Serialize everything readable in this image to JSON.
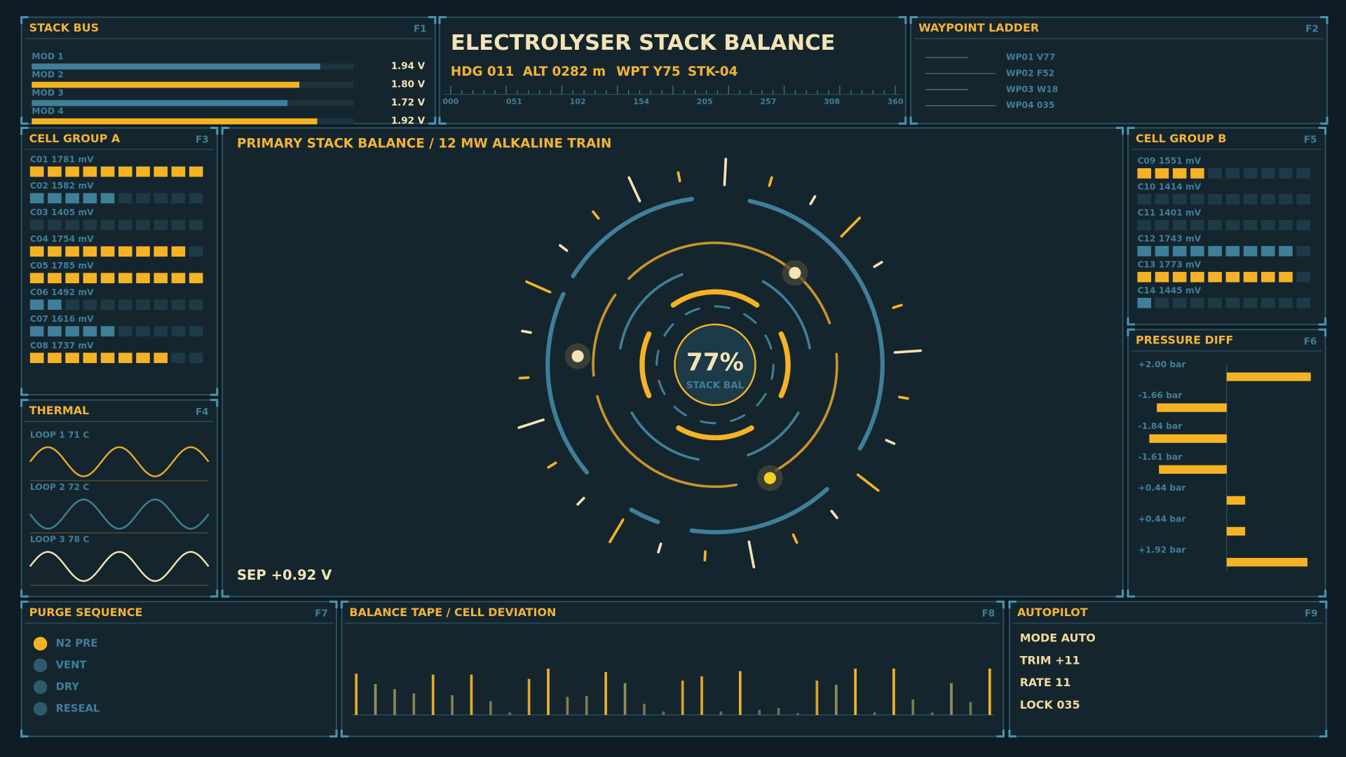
{
  "stack_bus": {
    "title": "STACK BUS",
    "key": "F1",
    "rows": [
      {
        "name": "MOD 1",
        "value": 1.94,
        "label": "1.94 V",
        "color": "#3f7f99"
      },
      {
        "name": "MOD 2",
        "value": 1.8,
        "label": "1.80 V",
        "color": "#f5b324"
      },
      {
        "name": "MOD 3",
        "value": 1.72,
        "label": "1.72 V",
        "color": "#3f7f99"
      },
      {
        "name": "MOD 4",
        "value": 1.92,
        "label": "1.92 V",
        "color": "#f5b324"
      }
    ]
  },
  "header": {
    "title": "ELECTROLYSER STACK BALANCE",
    "readouts": [
      "HDG 011",
      "ALT 0282 m",
      "WPT Y75",
      "STK-04"
    ],
    "scale_labels": [
      "000",
      "051",
      "102",
      "154",
      "205",
      "257",
      "308",
      "360"
    ]
  },
  "waypoint_ladder": {
    "title": "WAYPOINT LADDER",
    "key": "F2",
    "items": [
      "WP01 V77",
      "WP02 F52",
      "WP03 W18",
      "WP04 035"
    ]
  },
  "cell_group_a": {
    "title": "CELL GROUP A",
    "key": "F3",
    "cells": [
      {
        "label": "C01 1781 mV",
        "value": 1781,
        "segments": 10,
        "color": "#f5b324"
      },
      {
        "label": "C02 1582 mV",
        "value": 1582,
        "segments": 5,
        "color": "#3f7f99"
      },
      {
        "label": "C03 1405 mV",
        "value": 1405,
        "segments": 0,
        "color": "#3f7f99"
      },
      {
        "label": "C04 1754 mV",
        "value": 1754,
        "segments": 9,
        "color": "#f5b324"
      },
      {
        "label": "C05 1785 mV",
        "value": 1785,
        "segments": 10,
        "color": "#f5b324"
      },
      {
        "label": "C06 1492 mV",
        "value": 1492,
        "segments": 2,
        "color": "#3f7f99"
      },
      {
        "label": "C07 1616 mV",
        "value": 1616,
        "segments": 5,
        "color": "#3f7f99"
      },
      {
        "label": "C08 1737 mV",
        "value": 1737,
        "segments": 8,
        "color": "#f5b324"
      }
    ]
  },
  "thermal": {
    "title": "THERMAL",
    "key": "F4",
    "loops": [
      {
        "label": "LOOP 1 71 C",
        "color": "#e8aa2a"
      },
      {
        "label": "LOOP 2 72 C",
        "color": "#3f7f99"
      },
      {
        "label": "LOOP 3 78 C",
        "color": "#f3e3b5"
      }
    ]
  },
  "center": {
    "title": "PRIMARY STACK BALANCE / 12 MW ALKALINE TRAIN",
    "gauge_value": "77%",
    "gauge_label": "STACK BAL",
    "footer": "SEP +0.92 V"
  },
  "cell_group_b": {
    "title": "CELL GROUP B",
    "key": "F5",
    "cells": [
      {
        "label": "C09 1551 mV",
        "value": 1551,
        "segments": 4,
        "color": "#f5b324"
      },
      {
        "label": "C10 1414 mV",
        "value": 1414,
        "segments": 0,
        "color": "#3f7f99"
      },
      {
        "label": "C11 1401 mV",
        "value": 1401,
        "segments": 0,
        "color": "#3f7f99"
      },
      {
        "label": "C12 1743 mV",
        "value": 1743,
        "segments": 9,
        "color": "#3f7f99"
      },
      {
        "label": "C13 1773 mV",
        "value": 1773,
        "segments": 9,
        "color": "#f5b324"
      },
      {
        "label": "C14 1445 mV",
        "value": 1445,
        "segments": 1,
        "color": "#3f7f99"
      }
    ]
  },
  "pressure_diff": {
    "title": "PRESSURE DIFF",
    "key": "F6",
    "rows": [
      {
        "label": "+2.00 bar",
        "value": 2.0
      },
      {
        "label": "-1.66 bar",
        "value": -1.66
      },
      {
        "label": "-1.84 bar",
        "value": -1.84
      },
      {
        "label": "-1.61 bar",
        "value": -1.61
      },
      {
        "label": "+0.44 bar",
        "value": 0.44
      },
      {
        "label": "+0.44 bar",
        "value": 0.44
      },
      {
        "label": "+1.92 bar",
        "value": 1.92
      }
    ]
  },
  "purge_sequence": {
    "title": "PURGE SEQUENCE",
    "key": "F7",
    "steps": [
      {
        "label": "N2 PRE",
        "color": "#f5b324"
      },
      {
        "label": "VENT",
        "color": "#2e5a6c"
      },
      {
        "label": "DRY",
        "color": "#2e5a6c"
      },
      {
        "label": "RESEAL",
        "color": "#2e5a6c"
      }
    ]
  },
  "balance_tape": {
    "title": "BALANCE TAPE / CELL DEVIATION",
    "key": "F8",
    "values": [
      48,
      36,
      30,
      25,
      47,
      23,
      47,
      16,
      3,
      42,
      54,
      21,
      22,
      50,
      37,
      13,
      4,
      40,
      45,
      4,
      51,
      6,
      8,
      2,
      40,
      35,
      54,
      3,
      54,
      18,
      3,
      37,
      15,
      54
    ]
  },
  "autopilot": {
    "title": "AUTOPILOT",
    "key": "F9",
    "lines": [
      "MODE AUTO",
      "TRIM +11",
      "RATE 11",
      "LOCK 035"
    ]
  }
}
